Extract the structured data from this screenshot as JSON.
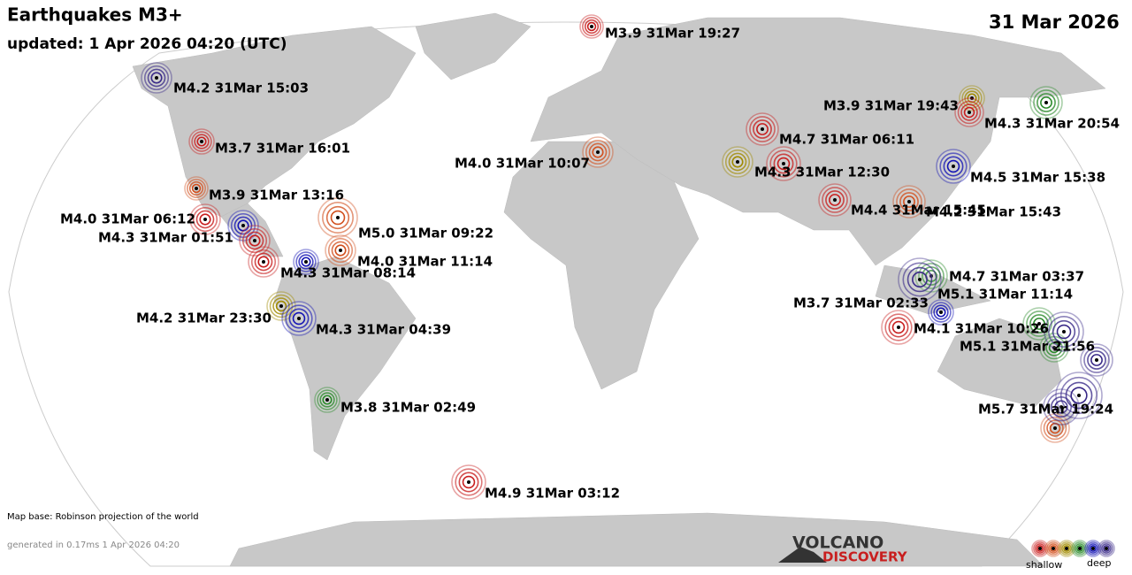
{
  "header": {
    "title": "Earthquakes M3+",
    "updated": "updated:  1 Apr 2026 04:20 (UTC)",
    "date": "31 Mar 2026"
  },
  "quakes": [
    {
      "label": "M3.9 31Mar 19:27",
      "color": "#c81e1e"
    },
    {
      "label": "M4.2 31Mar 15:03",
      "color": "#3a2a88"
    },
    {
      "label": "M3.7 31Mar 16:01",
      "color": "#c81e1e"
    },
    {
      "label": "M3.9 31Mar 13:16",
      "color": "#d2501e"
    },
    {
      "label": "M4.0 31Mar 06:12",
      "color": "#c81e1e"
    },
    {
      "label": "M4.3 31Mar 01:51",
      "color": "#c81e1e"
    },
    {
      "label": "M4.3 31Mar 08:14",
      "color": "#1414b4"
    },
    {
      "label": "M5.0 31Mar 09:22",
      "color": "#d2501e"
    },
    {
      "label": "M4.0 31Mar 11:14",
      "color": "#d2501e"
    },
    {
      "label": "M4.2 31Mar 23:30",
      "color": "#a08a00"
    },
    {
      "label": "M4.3 31Mar 04:39",
      "color": "#1414b4"
    },
    {
      "label": "M3.8 31Mar 02:49",
      "color": "#2a8a2a"
    },
    {
      "label": "M4.9 31Mar 03:12",
      "color": "#c81e1e"
    },
    {
      "label": "M4.0 31Mar 10:07",
      "color": "#d2501e"
    },
    {
      "label": "M4.7 31Mar 06:11",
      "color": "#c81e1e"
    },
    {
      "label": "M4.3 31Mar 12:30",
      "color": "#c81e1e"
    },
    {
      "label": "M4.4 31Mar 15:45",
      "color": "#c81e1e"
    },
    {
      "label": "M4.2 31Mar 15:43",
      "color": "#d2501e"
    },
    {
      "label": "M3.9 31Mar 19:43",
      "color": "#a08a00"
    },
    {
      "label": "M4.3 31Mar 20:54",
      "color": "#c81e1e"
    },
    {
      "label": "M4.5 31Mar 15:38",
      "color": "#1414b4"
    },
    {
      "label": "M4.7 31Mar 03:37",
      "color": "#2a8a2a"
    },
    {
      "label": "M5.1 31Mar 11:14",
      "color": "#3a2a88"
    },
    {
      "label": "M3.7 31Mar 02:33",
      "color": "#1414b4"
    },
    {
      "label": "M4.1 31Mar 10:26",
      "color": "#c81e1e"
    },
    {
      "label": "M5.1 31Mar 21:56",
      "color": "#3a2a88"
    },
    {
      "label": "M5.7 31Mar 19:24",
      "color": "#3a2a88"
    }
  ],
  "footer": {
    "map_base": "Map base: Robinson projection of the world",
    "generated": "generated in 0.17ms  1 Apr 2026 04:20",
    "logo_top": "VOLCANO",
    "logo_bottom": "DISCOVERY",
    "legend_shallow": "shallow",
    "legend_deep": "deep"
  }
}
